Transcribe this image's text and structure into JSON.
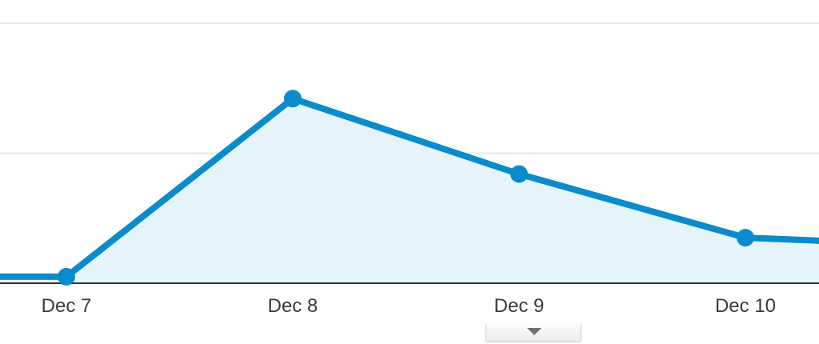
{
  "colors": {
    "line": "#0a8bcb",
    "fill": "#e5f4fb",
    "gridline": "#e8e8e8",
    "baseline": "#333333",
    "tick_text": "#3a3a3a"
  },
  "chart_data": {
    "type": "area",
    "title": "",
    "xlabel": "",
    "ylabel": "",
    "grid": true,
    "legend": "none",
    "categories": [
      "",
      "Dec 7",
      "Dec 8",
      "Dec 9",
      "Dec 10",
      ""
    ],
    "ylim": [
      0,
      100
    ],
    "series": [
      {
        "values": [
          2.5,
          2.5,
          71,
          42,
          17.5,
          14
        ]
      }
    ]
  },
  "controls": {
    "collapse_icon": "triangle-down-icon"
  }
}
